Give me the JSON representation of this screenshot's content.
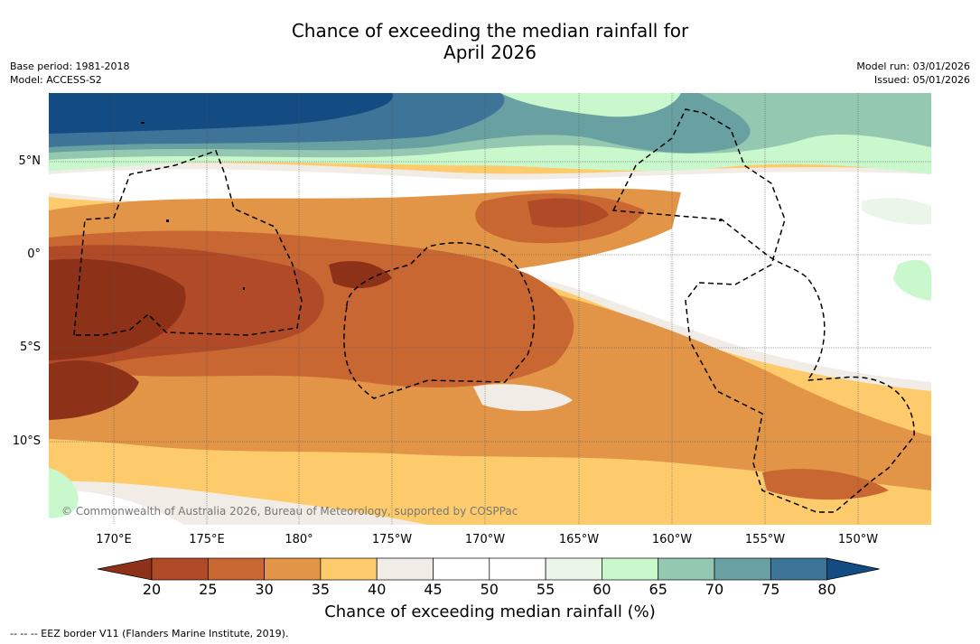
{
  "title": {
    "line1": "Chance of exceeding the median rainfall for",
    "line2": "April 2026"
  },
  "meta": {
    "base_period": "Base period: 1981-2018",
    "model": "Model: ACCESS-S2",
    "model_run": "Model run: 03/01/2026",
    "issued": "Issued: 05/01/2026"
  },
  "map": {
    "lat_labels": [
      "5°N",
      "0°",
      "5°S",
      "10°S"
    ],
    "lon_labels": [
      "170°E",
      "175°E",
      "180°",
      "175°W",
      "170°W",
      "165°W",
      "160°W",
      "155°W",
      "150°W"
    ],
    "copyright": "© Commonwealth of Australia 2026, Bureau of Meteorology, supported by COSPPac"
  },
  "colorbar": {
    "ticks": [
      "20",
      "25",
      "30",
      "35",
      "40",
      "45",
      "50",
      "55",
      "60",
      "65",
      "70",
      "75",
      "80"
    ],
    "colors": [
      "#8e3119",
      "#b04a27",
      "#c96733",
      "#e39547",
      "#fdcb6c",
      "#f1ece5",
      "#ffffff",
      "#ffffff",
      "#e9f6e8",
      "#c8f8cc",
      "#94c8b0",
      "#69a1a2",
      "#3e7497",
      "#134b83"
    ],
    "label": "Chance of exceeding median rainfall (%)"
  },
  "footnote": "--  --  -- EEZ border V11 (Flanders Marine Institute, 2019)."
}
